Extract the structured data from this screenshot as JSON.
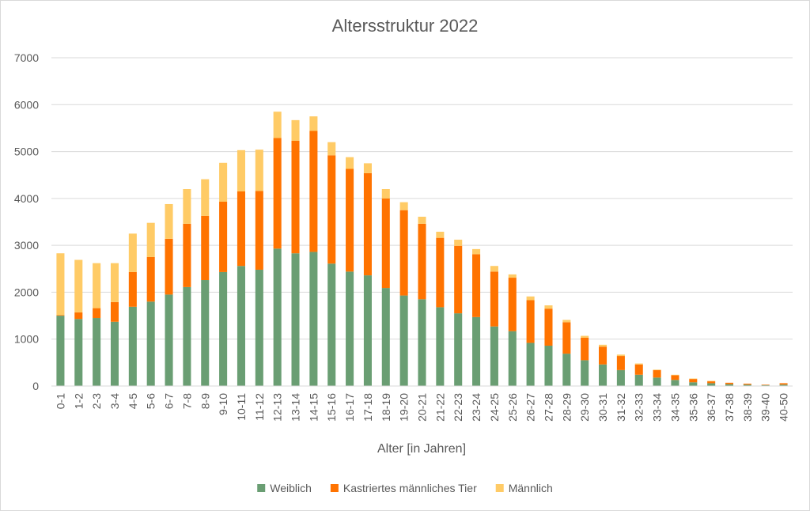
{
  "chart_data": {
    "type": "bar",
    "stacked": true,
    "title": "Altersstruktur 2022",
    "xlabel": "Alter [in Jahren]",
    "ylabel": "",
    "ylim": [
      0,
      7000
    ],
    "yticks": [
      0,
      1000,
      2000,
      3000,
      4000,
      5000,
      6000,
      7000
    ],
    "grid": true,
    "legend": "bottom",
    "categories": [
      "0-1",
      "1-2",
      "2-3",
      "3-4",
      "4-5",
      "5-6",
      "6-7",
      "7-8",
      "8-9",
      "9-10",
      "10-11",
      "11-12",
      "12-13",
      "13-14",
      "14-15",
      "15-16",
      "16-17",
      "17-18",
      "18-19",
      "19-20",
      "20-21",
      "21-22",
      "22-23",
      "23-24",
      "24-25",
      "25-26",
      "26-27",
      "27-28",
      "28-29",
      "29-30",
      "30-31",
      "31-32",
      "32-33",
      "33-34",
      "34-35",
      "35-36",
      "36-37",
      "37-38",
      "38-39",
      "39-40",
      "40-50"
    ],
    "series": [
      {
        "name": "Weiblich",
        "color": "#6a9e73",
        "values": [
          1500,
          1430,
          1450,
          1370,
          1690,
          1800,
          1950,
          2110,
          2260,
          2430,
          2560,
          2480,
          2930,
          2830,
          2860,
          2610,
          2440,
          2360,
          2090,
          1930,
          1850,
          1680,
          1550,
          1470,
          1270,
          1170,
          920,
          860,
          690,
          550,
          460,
          340,
          240,
          180,
          130,
          80,
          60,
          40,
          30,
          20,
          30
        ]
      },
      {
        "name": "Kastriertes männliches Tier",
        "color": "#ff7300",
        "values": [
          10,
          140,
          210,
          420,
          740,
          950,
          1190,
          1350,
          1370,
          1500,
          1590,
          1680,
          2360,
          2400,
          2580,
          2310,
          2190,
          2180,
          1910,
          1820,
          1610,
          1480,
          1440,
          1340,
          1170,
          1140,
          910,
          790,
          670,
          480,
          380,
          300,
          220,
          160,
          100,
          70,
          40,
          30,
          20,
          10,
          30
        ]
      },
      {
        "name": "Männlich",
        "color": "#ffcb66",
        "values": [
          1320,
          1120,
          960,
          830,
          820,
          730,
          740,
          740,
          780,
          830,
          880,
          880,
          560,
          440,
          310,
          280,
          250,
          210,
          200,
          170,
          150,
          130,
          130,
          110,
          120,
          70,
          80,
          70,
          50,
          40,
          40,
          30,
          20,
          10,
          10,
          10,
          10,
          0,
          0,
          0,
          0
        ]
      }
    ]
  }
}
